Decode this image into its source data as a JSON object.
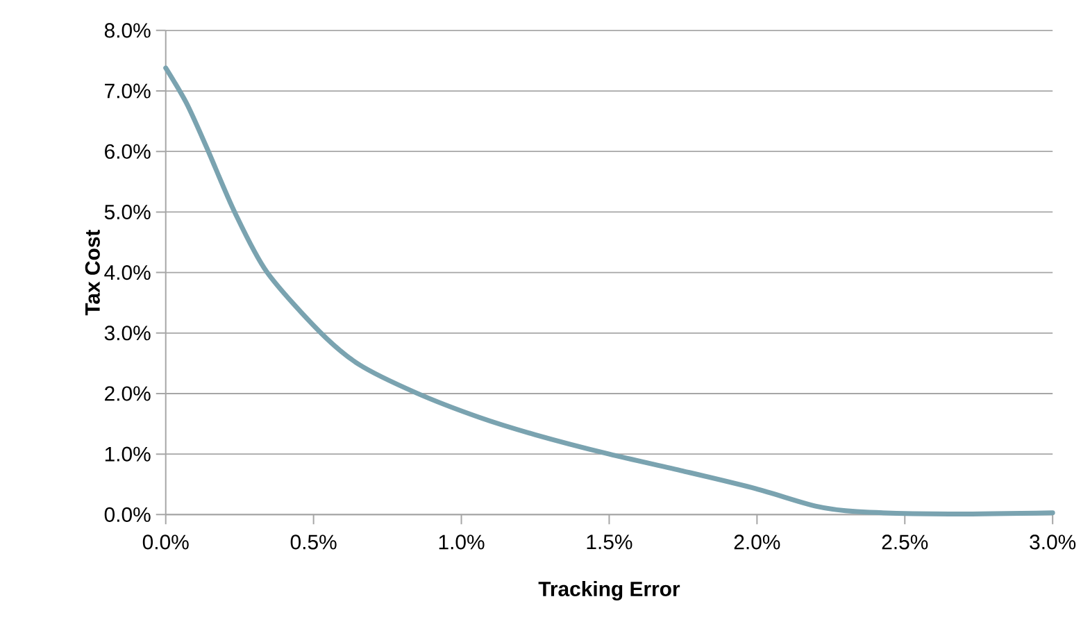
{
  "chart_data": {
    "type": "line",
    "xlabel": "Tracking Error",
    "ylabel": "Tax Cost",
    "x": [
      0,
      0.07,
      0.139,
      0.233,
      0.342,
      0.521,
      0.654,
      0.848,
      1.059,
      1.25,
      1.5,
      1.75,
      1.995,
      2.198,
      2.338,
      2.65,
      3.0
    ],
    "series": [
      {
        "color": "#7aa3b0",
        "values": [
          7.38,
          6.8,
          6.06,
          5.0,
          4.01,
          3.02,
          2.48,
          2.01,
          1.61,
          1.32,
          1.0,
          0.72,
          0.43,
          0.14,
          0.05,
          0.01,
          0.03
        ]
      }
    ],
    "xlim": [
      0,
      3.0
    ],
    "ylim": [
      0,
      8.0
    ],
    "xticks": [
      {
        "value": 0,
        "label": "0.0%"
      },
      {
        "value": 0.5,
        "label": "0.5%"
      },
      {
        "value": 1.0,
        "label": "1.0%"
      },
      {
        "value": 1.5,
        "label": "1.5%"
      },
      {
        "value": 2.0,
        "label": "2.0%"
      },
      {
        "value": 2.5,
        "label": "2.5%"
      },
      {
        "value": 3.0,
        "label": "3.0%"
      }
    ],
    "yticks": [
      {
        "value": 0,
        "label": "0.0%"
      },
      {
        "value": 1,
        "label": "1.0%"
      },
      {
        "value": 2,
        "label": "2.0%"
      },
      {
        "value": 3,
        "label": "3.0%"
      },
      {
        "value": 4,
        "label": "4.0%"
      },
      {
        "value": 5,
        "label": "5.0%"
      },
      {
        "value": 6,
        "label": "6.0%"
      },
      {
        "value": 7,
        "label": "7.0%"
      },
      {
        "value": 8,
        "label": "8.0%"
      }
    ],
    "grid": "y"
  }
}
